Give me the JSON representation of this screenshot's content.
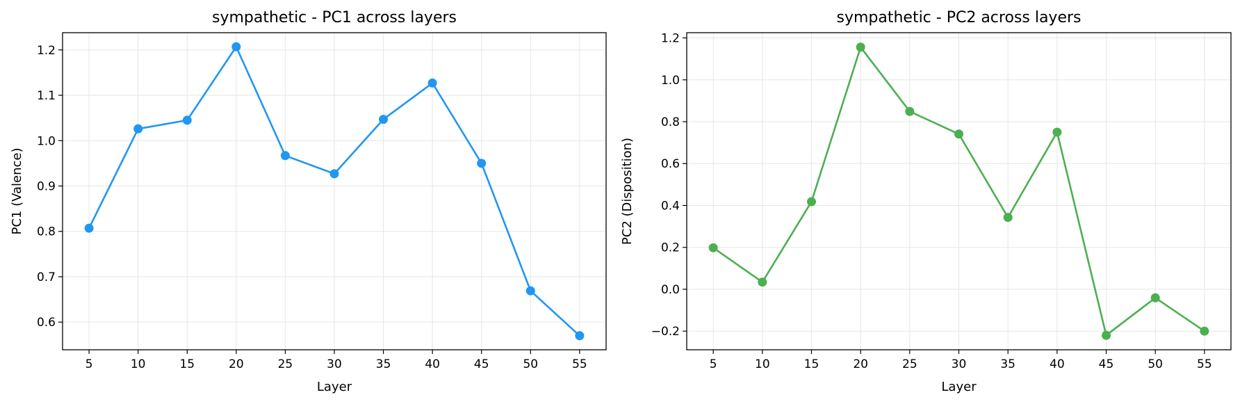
{
  "chart_data": [
    {
      "type": "line",
      "title": "sympathetic - PC1 across layers",
      "xlabel": "Layer",
      "ylabel": "PC1 (Valence)",
      "x": [
        5,
        10,
        15,
        20,
        25,
        30,
        35,
        40,
        45,
        50,
        55
      ],
      "series": [
        {
          "values": [
            0.807,
            1.026,
            1.045,
            1.207,
            0.967,
            0.927,
            1.047,
            1.127,
            0.95,
            0.669,
            0.57
          ]
        }
      ],
      "xticks": [
        "5",
        "10",
        "15",
        "20",
        "25",
        "30",
        "35",
        "40",
        "45",
        "50",
        "55"
      ],
      "yticks": [
        "0.6",
        "0.7",
        "0.8",
        "0.9",
        "1.0",
        "1.1",
        "1.2"
      ],
      "ytick_values": [
        0.6,
        0.7,
        0.8,
        0.9,
        1.0,
        1.1,
        1.2
      ],
      "xlim": [
        2.3,
        57.7
      ],
      "ylim": [
        0.539,
        1.238
      ],
      "grid": true,
      "color": "#2196f3"
    },
    {
      "type": "line",
      "title": "sympathetic - PC2 across layers",
      "xlabel": "Layer",
      "ylabel": "PC2 (Disposition)",
      "x": [
        5,
        10,
        15,
        20,
        25,
        30,
        35,
        40,
        45,
        50,
        55
      ],
      "series": [
        {
          "values": [
            0.198,
            0.034,
            0.418,
            1.156,
            0.849,
            0.741,
            0.343,
            0.75,
            -0.22,
            -0.041,
            -0.2
          ]
        }
      ],
      "xticks": [
        "5",
        "10",
        "15",
        "20",
        "25",
        "30",
        "35",
        "40",
        "45",
        "50",
        "55"
      ],
      "yticks": [
        "−0.2",
        "0.0",
        "0.2",
        "0.4",
        "0.6",
        "0.8",
        "1.0",
        "1.2"
      ],
      "ytick_values": [
        -0.2,
        0.0,
        0.2,
        0.4,
        0.6,
        0.8,
        1.0,
        1.2
      ],
      "xlim": [
        2.3,
        57.7
      ],
      "ylim": [
        -0.289,
        1.225
      ],
      "grid": true,
      "color": "#4caf50"
    }
  ]
}
